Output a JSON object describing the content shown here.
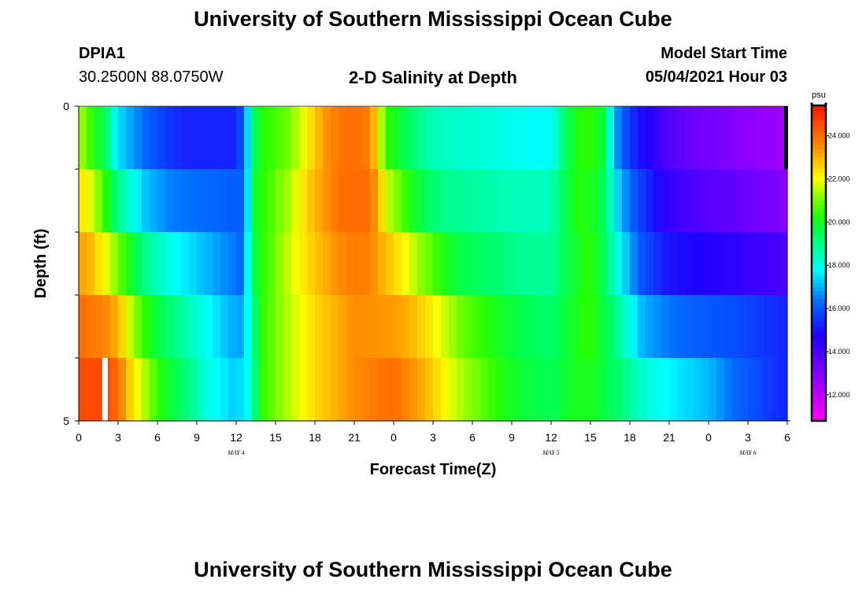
{
  "header": {
    "title": "University of Southern Mississippi Ocean Cube",
    "station_id": "DPIA1",
    "station_coords": "30.2500N  88.0750W",
    "plot_title": "2-D Salinity at Depth",
    "model_start_label": "Model Start Time",
    "model_start_value": "05/04/2021 Hour 03"
  },
  "footer": {
    "title": "University of Southern Mississippi Ocean Cube"
  },
  "chart_data": {
    "type": "heatmap",
    "title": "2-D Salinity at Depth",
    "xlabel": "Forecast Time(Z)",
    "ylabel": "Depth (ft)",
    "x_tick_labels": [
      "0",
      "3",
      "6",
      "9",
      "12",
      "15",
      "18",
      "21",
      "0",
      "3",
      "6",
      "9",
      "12",
      "15",
      "18",
      "21",
      "0",
      "3",
      "6"
    ],
    "x_day_labels": [
      {
        "label": "MAY 4",
        "at_hour": 12
      },
      {
        "label": "MAY 5",
        "at_hour": 36
      },
      {
        "label": "MAY 6",
        "at_hour": 51
      }
    ],
    "x_hours_range": [
      0,
      54
    ],
    "y_tick_labels": [
      "0",
      "5"
    ],
    "ylim": [
      0,
      5
    ],
    "y_bin_count": 5,
    "colorbar": {
      "unit": "psu",
      "range": [
        10.8,
        25.4
      ],
      "tick_labels": [
        "12.000",
        "14.000",
        "16.000",
        "18.000",
        "20.000",
        "22.000",
        "24.000"
      ],
      "tick_values": [
        12,
        14,
        16,
        18,
        20,
        22,
        24
      ]
    },
    "layer_keyframes": [
      {
        "depth_row": 0,
        "points": [
          [
            0,
            21
          ],
          [
            1,
            20
          ],
          [
            2,
            19
          ],
          [
            3,
            17
          ],
          [
            5,
            16
          ],
          [
            6,
            15.5
          ],
          [
            8,
            14.5
          ],
          [
            12,
            14.5
          ],
          [
            12.7,
            16.5
          ],
          [
            13.3,
            19
          ],
          [
            13.7,
            20
          ],
          [
            15,
            20.5
          ],
          [
            17,
            21.5
          ],
          [
            18,
            22.5
          ],
          [
            19,
            23.5
          ],
          [
            21,
            24
          ],
          [
            22,
            23.5
          ],
          [
            22.7,
            22
          ],
          [
            23.2,
            20.5
          ],
          [
            25,
            19
          ],
          [
            27,
            18
          ],
          [
            33,
            17.5
          ],
          [
            36,
            17
          ],
          [
            37,
            19
          ],
          [
            38,
            20
          ],
          [
            39,
            21
          ],
          [
            40,
            20
          ],
          [
            41,
            16.5
          ],
          [
            42,
            15
          ],
          [
            44,
            14
          ],
          [
            47,
            13
          ],
          [
            54,
            12
          ]
        ]
      },
      {
        "depth_row": 1,
        "points": [
          [
            0,
            22
          ],
          [
            1,
            21
          ],
          [
            2,
            20
          ],
          [
            3,
            18
          ],
          [
            5,
            16.5
          ],
          [
            7,
            16
          ],
          [
            12,
            16
          ],
          [
            12.7,
            16.5
          ],
          [
            13.3,
            19.5
          ],
          [
            14,
            20.5
          ],
          [
            16,
            21
          ],
          [
            17,
            22
          ],
          [
            18,
            23
          ],
          [
            20,
            24
          ],
          [
            22,
            24
          ],
          [
            23,
            23
          ],
          [
            23.2,
            21
          ],
          [
            25,
            20
          ],
          [
            27,
            19
          ],
          [
            33,
            18.5
          ],
          [
            36,
            18.5
          ],
          [
            37,
            19.5
          ],
          [
            38,
            20.5
          ],
          [
            40,
            19.5
          ],
          [
            41,
            17
          ],
          [
            42,
            16
          ],
          [
            45,
            14
          ],
          [
            54,
            13
          ]
        ]
      },
      {
        "depth_row": 2,
        "points": [
          [
            0,
            23
          ],
          [
            1,
            22.5
          ],
          [
            2,
            21
          ],
          [
            3,
            20
          ],
          [
            5,
            18
          ],
          [
            7,
            17
          ],
          [
            10,
            16.5
          ],
          [
            12.5,
            16
          ],
          [
            13,
            18
          ],
          [
            13.5,
            20
          ],
          [
            15,
            21
          ],
          [
            17,
            22.5
          ],
          [
            18,
            23
          ],
          [
            20,
            24
          ],
          [
            22,
            24
          ],
          [
            23,
            23
          ],
          [
            25,
            21
          ],
          [
            26,
            20
          ],
          [
            28,
            19
          ],
          [
            33,
            18.5
          ],
          [
            36,
            18.5
          ],
          [
            37,
            19.5
          ],
          [
            39,
            20.5
          ],
          [
            40,
            19.5
          ],
          [
            41,
            18
          ],
          [
            42,
            16.5
          ],
          [
            45,
            14.5
          ],
          [
            54,
            13
          ]
        ]
      },
      {
        "depth_row": 3,
        "points": [
          [
            0,
            23.5
          ],
          [
            2,
            23
          ],
          [
            3,
            22
          ],
          [
            4,
            21
          ],
          [
            5,
            20
          ],
          [
            8,
            18.5
          ],
          [
            10,
            17.5
          ],
          [
            12.5,
            16.5
          ],
          [
            13.2,
            19
          ],
          [
            14,
            20.5
          ],
          [
            16,
            21.5
          ],
          [
            18,
            22.5
          ],
          [
            21,
            23.5
          ],
          [
            25,
            23
          ],
          [
            27,
            22
          ],
          [
            29,
            20.5
          ],
          [
            33,
            19.5
          ],
          [
            36,
            19
          ],
          [
            37,
            19.5
          ],
          [
            39,
            20.5
          ],
          [
            40,
            19.5
          ],
          [
            41,
            18.5
          ],
          [
            43,
            16
          ],
          [
            45,
            15.5
          ],
          [
            54,
            15
          ]
        ]
      },
      {
        "depth_row": 4,
        "points": [
          [
            0,
            24.5
          ],
          [
            3,
            24
          ],
          [
            4,
            22
          ],
          [
            6,
            20
          ],
          [
            8,
            19
          ],
          [
            10,
            18
          ],
          [
            12,
            17
          ],
          [
            13,
            18
          ],
          [
            14,
            20.5
          ],
          [
            16,
            21.5
          ],
          [
            18,
            22.5
          ],
          [
            21,
            23.5
          ],
          [
            24,
            23.5
          ],
          [
            27,
            22.5
          ],
          [
            29,
            21.5
          ],
          [
            33,
            20
          ],
          [
            36,
            19.5
          ],
          [
            37,
            20
          ],
          [
            39,
            20.5
          ],
          [
            41,
            19.5
          ],
          [
            43,
            18
          ],
          [
            46,
            17
          ],
          [
            50,
            16.5
          ],
          [
            54,
            15.5
          ]
        ]
      },
      {
        "depth_row": 5,
        "points": [
          [
            0,
            24.5
          ],
          [
            2,
            25
          ],
          [
            4,
            23
          ],
          [
            6,
            21
          ],
          [
            8,
            19.5
          ],
          [
            10,
            18
          ],
          [
            12,
            17.5
          ],
          [
            13,
            18
          ],
          [
            14,
            20.5
          ],
          [
            16,
            21.5
          ],
          [
            18,
            22.5
          ],
          [
            21,
            23.5
          ],
          [
            24,
            24.5
          ],
          [
            26,
            23.5
          ],
          [
            29,
            21.5
          ],
          [
            33,
            20
          ],
          [
            36,
            19.5
          ],
          [
            38,
            20
          ],
          [
            40,
            19.5
          ],
          [
            43,
            18.5
          ],
          [
            46,
            18
          ],
          [
            48,
            17.5
          ],
          [
            50,
            16
          ],
          [
            54,
            15
          ]
        ]
      }
    ],
    "markers": [
      {
        "name": "white-bar",
        "hour": 2,
        "depth_row": 4,
        "color": "#ffffff"
      },
      {
        "name": "black-bar",
        "hour": 54,
        "depth_row": 0,
        "color": "#000000"
      }
    ]
  }
}
